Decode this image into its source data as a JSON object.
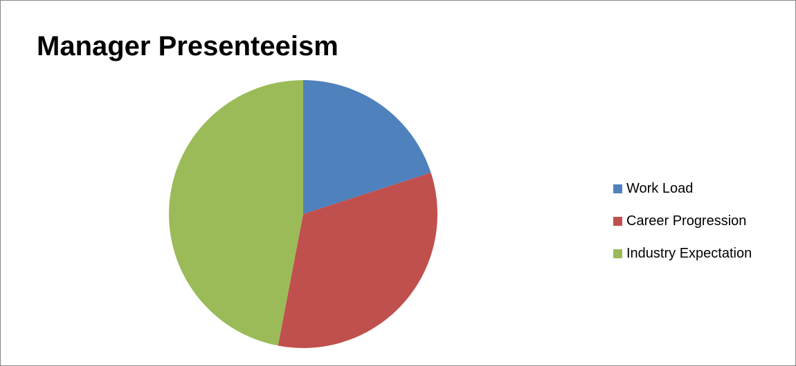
{
  "chart_data": {
    "type": "pie",
    "title": "Manager Presenteeism",
    "categories": [
      "Work Load",
      "Career Progression",
      "Industry Expectation"
    ],
    "values": [
      20,
      33,
      47
    ],
    "colors": [
      "#4f81bd",
      "#c0504d",
      "#9bbb59"
    ],
    "start_angle_deg": 0,
    "direction": "clockwise",
    "legend_position": "right"
  }
}
